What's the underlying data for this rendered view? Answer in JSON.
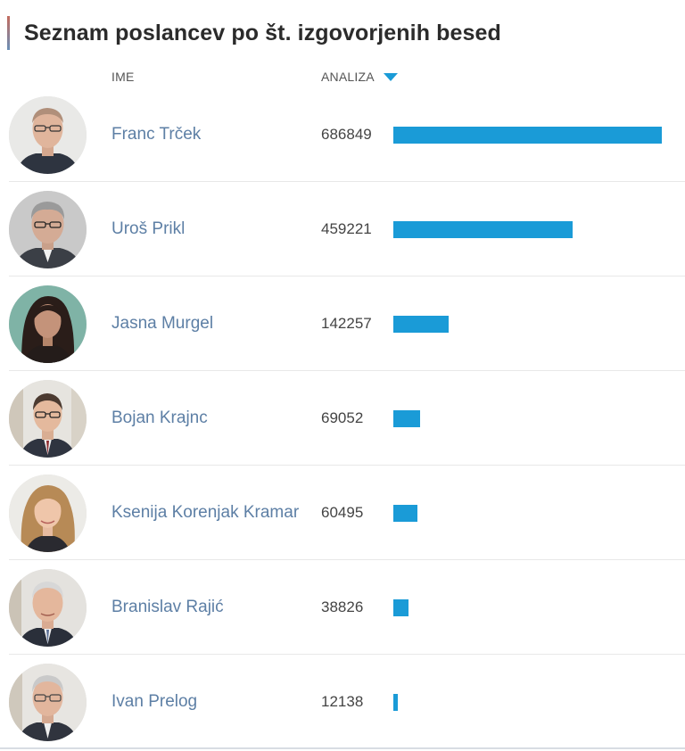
{
  "page": {
    "title": "Seznam poslancev po št. izgovorjenih besed"
  },
  "table": {
    "header_name": "IME",
    "header_analysis": "ANALIZA",
    "sort_direction": "descending",
    "bar_color": "#1a9bd7",
    "max_value": 686849,
    "rows": [
      {
        "name": "Franc Trček",
        "value": 686849,
        "value_label": "686849"
      },
      {
        "name": "Uroš Prikl",
        "value": 459221,
        "value_label": "459221"
      },
      {
        "name": "Jasna Murgel",
        "value": 142257,
        "value_label": "142257"
      },
      {
        "name": "Bojan Krajnc",
        "value": 69052,
        "value_label": "69052"
      },
      {
        "name": "Ksenija Korenjak Kramar",
        "value": 60495,
        "value_label": "60495"
      },
      {
        "name": "Branislav Rajić",
        "value": 38826,
        "value_label": "38826"
      },
      {
        "name": "Ivan Prelog",
        "value": 12138,
        "value_label": "12138"
      }
    ]
  }
}
